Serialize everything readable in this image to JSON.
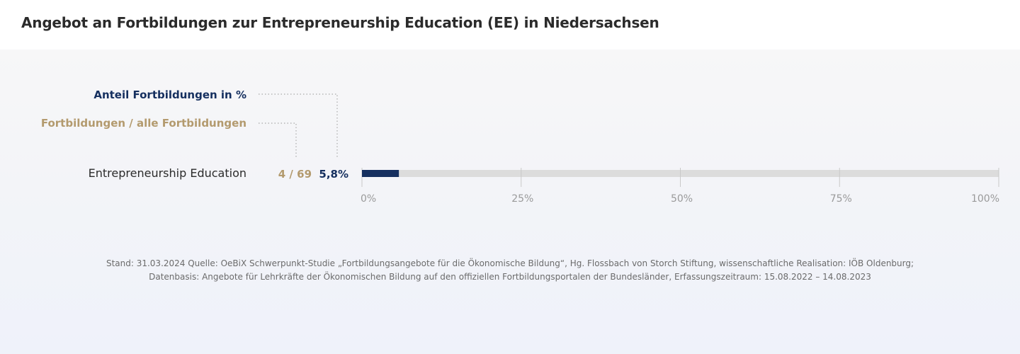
{
  "title": "Angebot an Fortbildungen zur Entrepreneurship Education (EE) in Niedersachsen",
  "colors": {
    "navy": "#152f5f",
    "gold": "#b39a6e",
    "track": "#dcdcdc",
    "gridline": "#c9c9c9"
  },
  "chart_data": {
    "type": "bar",
    "orientation": "horizontal",
    "legend": {
      "share_label": "Anteil Fortbildungen  in %",
      "count_label": "Fortbildungen / alle Fortbildungen"
    },
    "categories": [
      "Entrepreneurship Education"
    ],
    "counts": [
      "4 / 69"
    ],
    "value_labels": [
      "5,8%"
    ],
    "values": [
      5.8
    ],
    "xlim": [
      0,
      100
    ],
    "xticks": [
      0,
      25,
      50,
      75,
      100
    ],
    "xtick_labels": [
      "0%",
      "25%",
      "50%",
      "75%",
      "100%"
    ],
    "grid": true
  },
  "footnote": {
    "line1": "Stand: 31.03.2024 Quelle: OeBiX Schwerpunkt-Studie „Fortbildungsangebote für die Ökonomische Bildung“, Hg. Flossbach von Storch Stiftung, wissenschaftliche Realisation: IÖB Oldenburg;",
    "line2": "Datenbasis: Angebote für Lehrkräfte der Ökonomischen Bildung auf den offiziellen Fortbildungsportalen der Bundesländer, Erfassungszeitraum: 15.08.2022 – 14.08.2023"
  }
}
